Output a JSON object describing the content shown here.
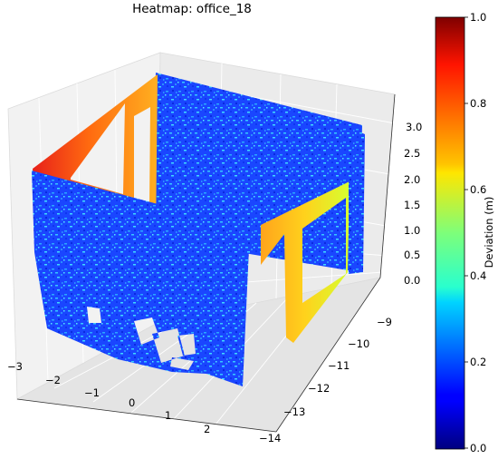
{
  "chart_data": {
    "type": "heatmap",
    "subtype": "3d-point-cloud-deviation",
    "title": "Heatmap: office_18",
    "colormap": "jet",
    "x_axis": {
      "ticks": [
        -3,
        -2,
        -1,
        0,
        1,
        2
      ],
      "labels": [
        "−3",
        "−2",
        "−1",
        "0",
        "1",
        "2"
      ]
    },
    "y_axis": {
      "ticks": [
        -9,
        -10,
        -11,
        -12,
        -13,
        -14
      ],
      "labels": [
        "−9",
        "−10",
        "−11",
        "−12",
        "−13",
        "−14"
      ]
    },
    "z_axis": {
      "ticks": [
        0.0,
        0.5,
        1.0,
        1.5,
        2.0,
        2.5,
        3.0
      ],
      "labels": [
        "0.0",
        "0.5",
        "1.0",
        "1.5",
        "2.0",
        "2.5",
        "3.0"
      ]
    },
    "colorbar": {
      "label": "Deviation (m)",
      "range": [
        0.0,
        1.0
      ],
      "ticks": [
        0.0,
        0.2,
        0.4,
        0.6,
        0.8,
        1.0
      ],
      "labels": [
        "0.0",
        "0.2",
        "0.4",
        "0.6",
        "0.8",
        "1.0"
      ]
    },
    "surfaces": [
      {
        "name": "back-wall",
        "deviation": 0.1
      },
      {
        "name": "left-wall-window-frame",
        "deviation": 0.75
      },
      {
        "name": "front-wall",
        "deviation": 0.1
      },
      {
        "name": "right-wall-window-frame",
        "deviation": 0.62
      }
    ],
    "grid": true,
    "pane_color": "#f2f2f2"
  }
}
